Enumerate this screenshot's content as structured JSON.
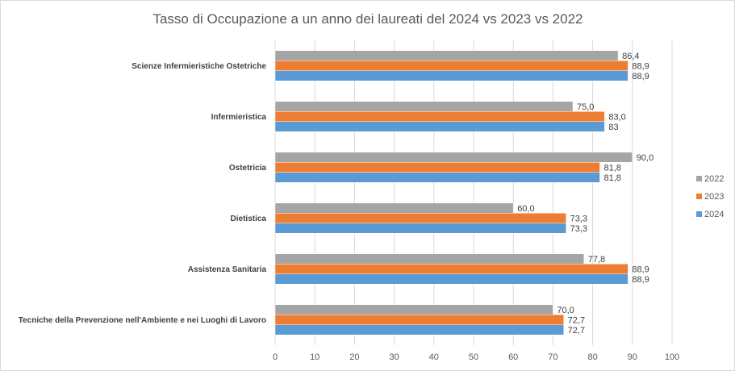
{
  "chart_data": {
    "type": "bar",
    "orientation": "horizontal",
    "title": "Tasso di Occupazione  a un anno dei laureati del 2024 vs 2023 vs 2022",
    "categories": [
      "Scienze Infermieristiche Ostetriche",
      "Infermieristica",
      "Ostetricia",
      "Dietistica",
      "Assistenza Sanitaria",
      "Tecniche della Prevenzione nell'Ambiente e nei Luoghi di Lavoro"
    ],
    "series": [
      {
        "name": "2022",
        "color": "#a5a5a5",
        "values": [
          86.4,
          75.0,
          90.0,
          60.0,
          77.8,
          70.0
        ],
        "labels": [
          "86,4",
          "75,0",
          "90,0",
          "60,0",
          "77,8",
          "70,0"
        ]
      },
      {
        "name": "2023",
        "color": "#ed7d31",
        "values": [
          88.9,
          83.0,
          81.8,
          73.3,
          88.9,
          72.7
        ],
        "labels": [
          "88,9",
          "83,0",
          "81,8",
          "73,3",
          "88,9",
          "72,7"
        ]
      },
      {
        "name": "2024",
        "color": "#5b9bd5",
        "values": [
          88.9,
          83,
          81.8,
          73.3,
          88.9,
          72.7
        ],
        "labels": [
          "88,9",
          "83",
          "81,8",
          "73,3",
          "88,9",
          "72,7"
        ]
      }
    ],
    "xlim": [
      0,
      100
    ],
    "xticks": [
      "0",
      "10",
      "20",
      "30",
      "40",
      "50",
      "60",
      "70",
      "80",
      "90",
      "100"
    ],
    "grid": true,
    "legend_position": "right",
    "xlabel": "",
    "ylabel": ""
  }
}
